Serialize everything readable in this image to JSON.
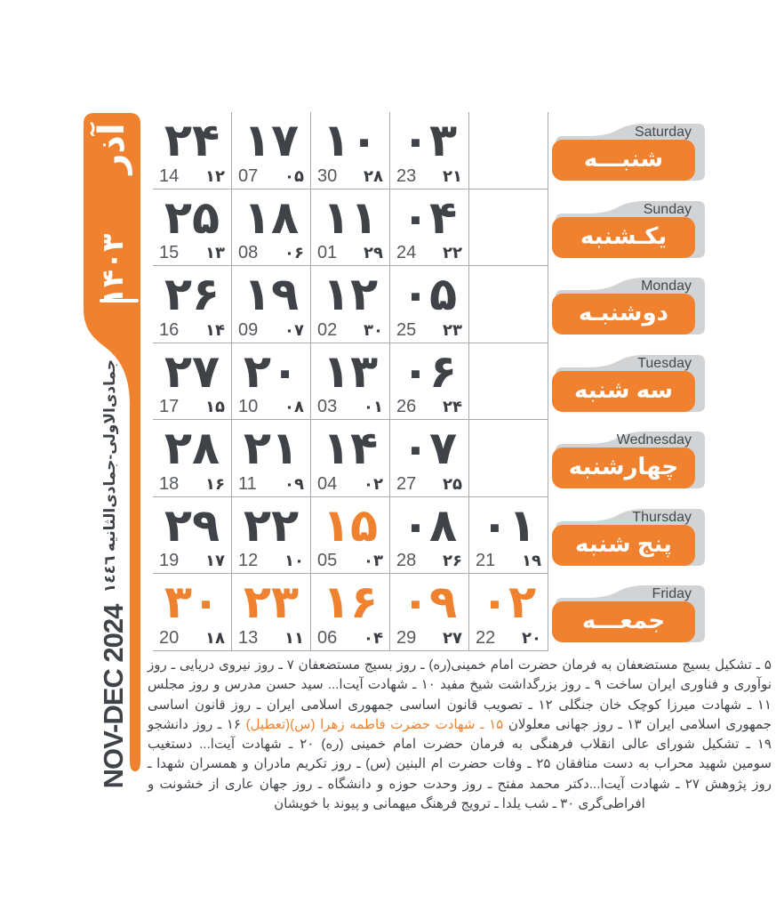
{
  "colors": {
    "accent": "#F0812E",
    "ink": "#3F4348",
    "tab_gray": "#D2D3D5",
    "grid_line": "#A7ABAE"
  },
  "month_tab": {
    "month_name": "آذر",
    "year": "۱۴۰۳"
  },
  "sidebar": {
    "lunar_months": "جمادی‌الاولی-جمادی‌الثانیه ١٤٤٦",
    "gregorian_range": "NOV-DEC 2024"
  },
  "weekdays": [
    {
      "en": "Saturday",
      "fa": "شنبـــه"
    },
    {
      "en": "Sunday",
      "fa": "یکـشنبه"
    },
    {
      "en": "Monday",
      "fa": "دوشنبـه"
    },
    {
      "en": "Tuesday",
      "fa": "سه شنبه"
    },
    {
      "en": "Wednesday",
      "fa": "چهارشنبه"
    },
    {
      "en": "Thursday",
      "fa": "پنج شنبه"
    },
    {
      "en": "Friday",
      "fa": "جمعـــه"
    }
  ],
  "grid": {
    "rows": [
      {
        "weekday": "saturday",
        "cells": [
          {
            "solar": "۲۴",
            "gregorian": "14",
            "lunar": "۱۲",
            "accent": false
          },
          {
            "solar": "۱۷",
            "gregorian": "07",
            "lunar": "۰۵",
            "accent": false
          },
          {
            "solar": "۱۰",
            "gregorian": "30",
            "lunar": "۲۸",
            "accent": false
          },
          {
            "solar": "۰۳",
            "gregorian": "23",
            "lunar": "۲۱",
            "accent": false
          },
          null
        ]
      },
      {
        "weekday": "sunday",
        "cells": [
          {
            "solar": "۲۵",
            "gregorian": "15",
            "lunar": "۱۳",
            "accent": false
          },
          {
            "solar": "۱۸",
            "gregorian": "08",
            "lunar": "۰۶",
            "accent": false
          },
          {
            "solar": "۱۱",
            "gregorian": "01",
            "lunar": "۲۹",
            "accent": false
          },
          {
            "solar": "۰۴",
            "gregorian": "24",
            "lunar": "۲۲",
            "accent": false
          },
          null
        ]
      },
      {
        "weekday": "monday",
        "cells": [
          {
            "solar": "۲۶",
            "gregorian": "16",
            "lunar": "۱۴",
            "accent": false
          },
          {
            "solar": "۱۹",
            "gregorian": "09",
            "lunar": "۰۷",
            "accent": false
          },
          {
            "solar": "۱۲",
            "gregorian": "02",
            "lunar": "۳۰",
            "accent": false
          },
          {
            "solar": "۰۵",
            "gregorian": "25",
            "lunar": "۲۳",
            "accent": false
          },
          null
        ]
      },
      {
        "weekday": "tuesday",
        "cells": [
          {
            "solar": "۲۷",
            "gregorian": "17",
            "lunar": "۱۵",
            "accent": false
          },
          {
            "solar": "۲۰",
            "gregorian": "10",
            "lunar": "۰۸",
            "accent": false
          },
          {
            "solar": "۱۳",
            "gregorian": "03",
            "lunar": "۰۱",
            "accent": false
          },
          {
            "solar": "۰۶",
            "gregorian": "26",
            "lunar": "۲۴",
            "accent": false
          },
          null
        ]
      },
      {
        "weekday": "wednesday",
        "cells": [
          {
            "solar": "۲۸",
            "gregorian": "18",
            "lunar": "۱۶",
            "accent": false
          },
          {
            "solar": "۲۱",
            "gregorian": "11",
            "lunar": "۰۹",
            "accent": false
          },
          {
            "solar": "۱۴",
            "gregorian": "04",
            "lunar": "۰۲",
            "accent": false
          },
          {
            "solar": "۰۷",
            "gregorian": "27",
            "lunar": "۲۵",
            "accent": false
          },
          null
        ]
      },
      {
        "weekday": "thursday",
        "cells": [
          {
            "solar": "۲۹",
            "gregorian": "19",
            "lunar": "۱۷",
            "accent": false
          },
          {
            "solar": "۲۲",
            "gregorian": "12",
            "lunar": "۱۰",
            "accent": false
          },
          {
            "solar": "۱۵",
            "gregorian": "05",
            "lunar": "۰۳",
            "accent": true
          },
          {
            "solar": "۰۸",
            "gregorian": "28",
            "lunar": "۲۶",
            "accent": false
          },
          {
            "solar": "۰۱",
            "gregorian": "21",
            "lunar": "۱۹",
            "accent": false
          }
        ]
      },
      {
        "weekday": "friday",
        "cells": [
          {
            "solar": "۳۰",
            "gregorian": "20",
            "lunar": "۱۸",
            "accent": true
          },
          {
            "solar": "۲۳",
            "gregorian": "13",
            "lunar": "۱۱",
            "accent": true
          },
          {
            "solar": "۱۶",
            "gregorian": "06",
            "lunar": "۰۴",
            "accent": true
          },
          {
            "solar": "۰۹",
            "gregorian": "29",
            "lunar": "۲۷",
            "accent": true
          },
          {
            "solar": "۰۲",
            "gregorian": "22",
            "lunar": "۲۰",
            "accent": true
          }
        ]
      }
    ]
  },
  "footer": {
    "lines": [
      [
        {
          "text": "۵ ـ تشکیل بسیج مستضعفان به فرمان حضرت امام خمینی(ره) ـ روز بسیج مستضعفان ۷ ـ روز نیروی دریایی ـ روز",
          "accent": false
        }
      ],
      [
        {
          "text": "نوآوری و فناوری ایران ساخت ۹ ـ روز بزرگداشت شیخ مفید ۱۰ ـ شهادت آیت‌ا... سید حسن مدرس و روز مجلس",
          "accent": false
        }
      ],
      [
        {
          "text": "۱۱ ـ شهادت میرزا کوچک خان جنگلی ۱۲ ـ تصویب قانون اساسی جمهوری اسلامی ایران ـ روز قانون اساسی",
          "accent": false
        }
      ],
      [
        {
          "text": "جمهوری اسلامی ایران ۱۳ ـ روز جهانی معلولان ",
          "accent": false
        },
        {
          "text": "۱۵ ـ شهادت حضرت فاطمه زهرا (س)(تعطیل)",
          "accent": true
        },
        {
          "text": " ۱۶ ـ روز دانشجو",
          "accent": false
        }
      ],
      [
        {
          "text": "۱۹ ـ تشکیل شورای عالی انقلاب فرهنگی به فرمان حضرت امام خمینی (ره) ۲۰ ـ شهادت آیت‌ا... دستغیب",
          "accent": false
        }
      ],
      [
        {
          "text": "سومین شهید محراب به دست منافقان ۲۵ ـ وفات حضرت ام البنین (س) ـ روز تکریم مادران و همسران شهدا ـ",
          "accent": false
        }
      ],
      [
        {
          "text": "روز پژوهش ۲۷ ـ شهادت آیت‌ا...دکتر محمد مفتح ـ روز وحدت حوزه و دانشگاه ـ روز جهان عاری از خشونت و",
          "accent": false
        }
      ],
      [
        {
          "text": "افراطی‌گری ۳۰ ـ شب یلدا ـ ترویج فرهنگ میهمانی و پیوند با خویشان",
          "accent": false
        }
      ]
    ]
  }
}
